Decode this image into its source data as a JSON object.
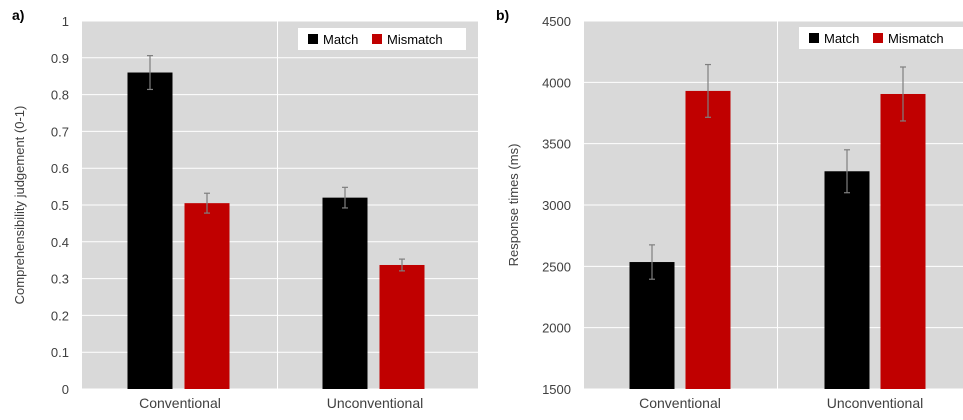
{
  "chart_data": [
    {
      "panel_label": "a)",
      "type": "bar",
      "categories": [
        "Conventional",
        "Unconventional"
      ],
      "series": [
        {
          "name": "Match",
          "color": "#000000",
          "values": [
            0.86,
            0.52
          ],
          "errors": [
            0.046,
            0.028
          ]
        },
        {
          "name": "Mismatch",
          "color": "#c00000",
          "values": [
            0.505,
            0.337
          ],
          "errors": [
            0.027,
            0.016
          ]
        }
      ],
      "ylabel": "Comprehensibility judgement (0-1)",
      "xlabel": "",
      "ylim": [
        0,
        1
      ],
      "yticks": [
        0,
        0.1,
        0.2,
        0.3,
        0.4,
        0.5,
        0.6,
        0.7,
        0.8,
        0.9,
        1
      ],
      "ytick_labels": [
        "0",
        "0.1",
        "0.2",
        "0.3",
        "0.4",
        "0.5",
        "0.6",
        "0.7",
        "0.8",
        "0.9",
        "1"
      ],
      "grid": true,
      "legend_position": "top-right",
      "background": "#d9d9d9"
    },
    {
      "panel_label": "b)",
      "type": "bar",
      "categories": [
        "Conventional",
        "Unconventional"
      ],
      "series": [
        {
          "name": "Match",
          "color": "#000000",
          "values": [
            2535,
            3275
          ],
          "errors": [
            140,
            175
          ]
        },
        {
          "name": "Mismatch",
          "color": "#c00000",
          "values": [
            3930,
            3905
          ],
          "errors": [
            215,
            220
          ]
        }
      ],
      "ylabel": "Response times (ms)",
      "xlabel": "",
      "ylim": [
        1500,
        4500
      ],
      "yticks": [
        1500,
        2000,
        2500,
        3000,
        3500,
        4000,
        4500
      ],
      "ytick_labels": [
        "1500",
        "2000",
        "2500",
        "3000",
        "3500",
        "4000",
        "4500"
      ],
      "grid": true,
      "legend_position": "top-right",
      "background": "#d9d9d9"
    }
  ]
}
